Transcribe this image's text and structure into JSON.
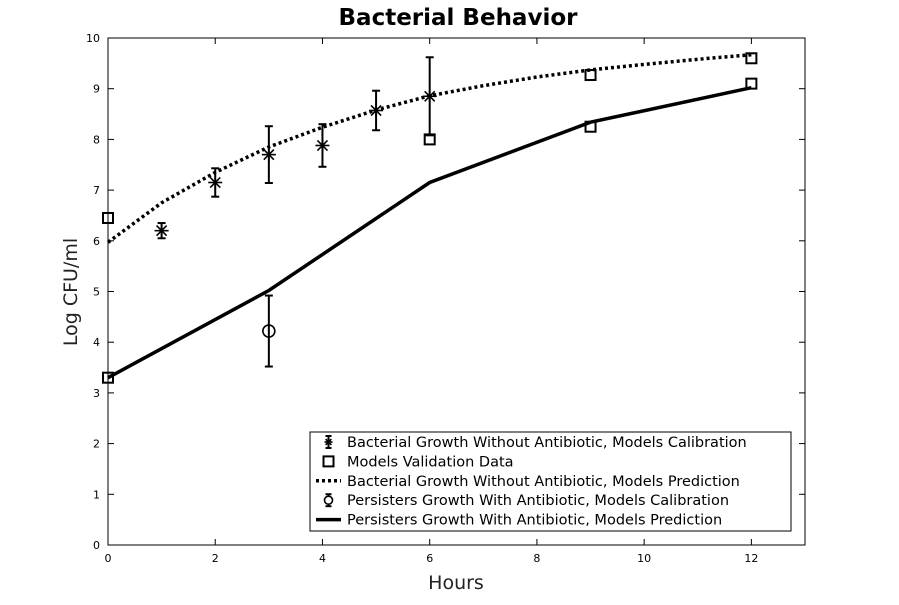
{
  "chart_data": {
    "type": "line",
    "title": "Bacterial Behavior",
    "xlabel": "Hours",
    "ylabel": "Log CFU/ml",
    "xlim": [
      0,
      13
    ],
    "ylim": [
      0,
      10
    ],
    "xticks": [
      0,
      2,
      4,
      6,
      8,
      10,
      12
    ],
    "yticks": [
      0,
      1,
      2,
      3,
      4,
      5,
      6,
      7,
      8,
      9,
      10
    ],
    "grid": false,
    "legend_position": "bottom-right",
    "colors": {
      "ink": "#000000"
    },
    "series": [
      {
        "name": "Bacterial Growth Without Antibiotic, Models Calibration",
        "style": "errorbar-asterisk",
        "x": [
          1,
          2,
          3,
          4,
          5,
          6
        ],
        "y": [
          6.2,
          7.15,
          7.7,
          7.88,
          8.57,
          8.85
        ],
        "err": [
          0.15,
          0.28,
          0.56,
          0.42,
          0.39,
          0.77
        ]
      },
      {
        "name": "Models Validation Data",
        "style": "square-marker",
        "x": [
          0,
          0,
          6,
          9,
          12,
          12
        ],
        "y": [
          6.45,
          3.3,
          8.0,
          8.25,
          9.1,
          9.6
        ],
        "extra_x": [
          9
        ],
        "extra_y": [
          9.27
        ]
      },
      {
        "name": "Bacterial Growth Without Antibiotic, Models Prediction",
        "style": "dotted-line",
        "x": [
          0,
          1,
          2,
          3,
          4,
          5,
          6,
          7,
          8,
          9,
          10,
          11,
          12
        ],
        "y": [
          5.97,
          6.75,
          7.35,
          7.85,
          8.24,
          8.58,
          8.86,
          9.06,
          9.23,
          9.37,
          9.48,
          9.58,
          9.67
        ]
      },
      {
        "name": "Persisters Growth With Antibiotic, Models Calibration",
        "style": "errorbar-circle",
        "x": [
          3
        ],
        "y": [
          4.22
        ],
        "err": [
          0.7
        ]
      },
      {
        "name": "Persisters Growth With Antibiotic, Models Prediction",
        "style": "solid-line",
        "x": [
          0,
          3,
          6,
          9,
          12
        ],
        "y": [
          3.3,
          5.02,
          7.15,
          8.34,
          9.02
        ]
      }
    ]
  }
}
